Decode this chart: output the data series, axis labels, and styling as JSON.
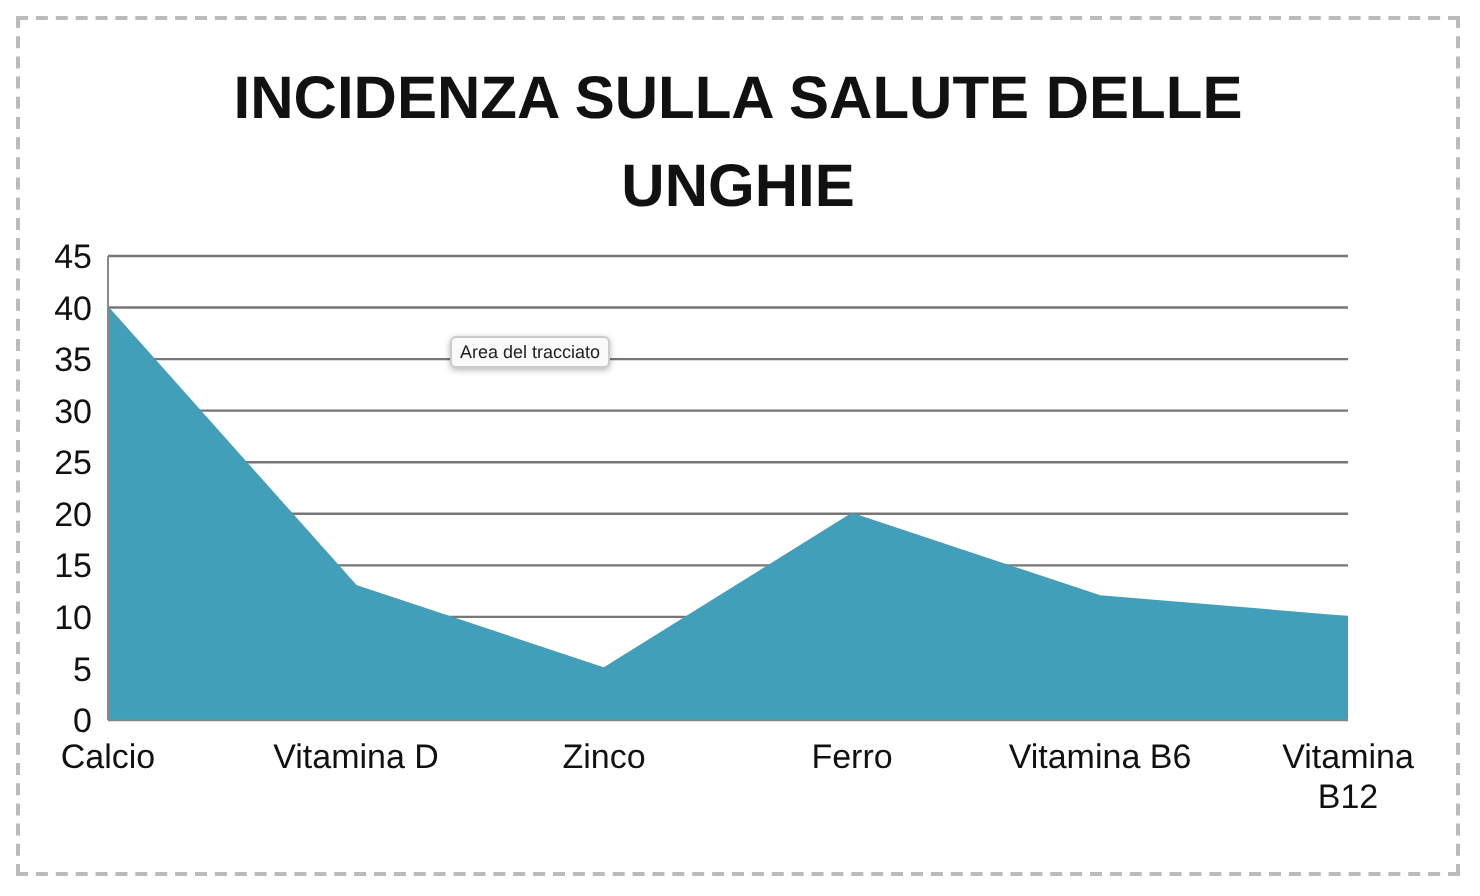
{
  "chart_data": {
    "type": "area",
    "title": "INCIDENZA SULLA SALUTE DELLE UNGHIE",
    "categories": [
      "Calcio",
      "Vitamina D",
      "Zinco",
      "Ferro",
      "Vitamina B6",
      "Vitamina B12"
    ],
    "values": [
      40,
      13,
      5,
      20,
      12,
      10
    ],
    "color": "#419fba",
    "ylim": [
      0,
      45
    ],
    "yticks": [
      0,
      5,
      10,
      15,
      20,
      25,
      30,
      35,
      40,
      45
    ],
    "grid": "y",
    "annotations": [
      "Area del tracciato"
    ]
  }
}
